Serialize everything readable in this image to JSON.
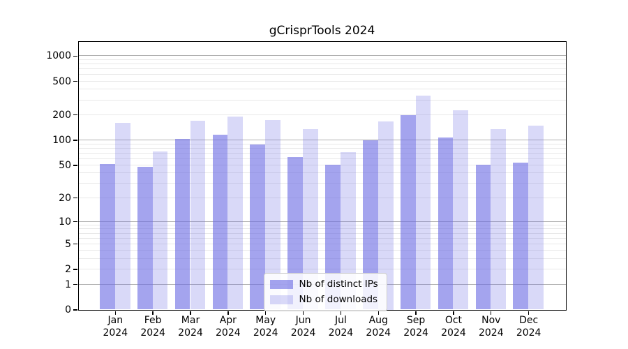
{
  "chart_data": {
    "type": "bar",
    "title": "gCrisprTools 2024",
    "categories": [
      "Jan 2024",
      "Feb 2024",
      "Mar 2024",
      "Apr 2024",
      "May 2024",
      "Jun 2024",
      "Jul 2024",
      "Aug 2024",
      "Sep 2024",
      "Oct 2024",
      "Nov 2024",
      "Dec 2024"
    ],
    "series": [
      {
        "name": "Nb of distinct IPs",
        "values": [
          51,
          48,
          102,
          115,
          88,
          62,
          50,
          100,
          197,
          107,
          50,
          54
        ],
        "color": "rgba(108,108,228,0.62)"
      },
      {
        "name": "Nb of downloads",
        "values": [
          160,
          73,
          170,
          190,
          172,
          135,
          72,
          166,
          335,
          227,
          135,
          147
        ],
        "color": "rgba(108,108,228,0.26)"
      }
    ],
    "yticks": [
      0,
      1,
      2,
      5,
      10,
      20,
      50,
      100,
      200,
      500,
      1000
    ],
    "scale": "log1p",
    "ylim": [
      0,
      1470
    ],
    "xlabel": "",
    "ylabel": "",
    "grid": "horizontal",
    "legend_position": "bottom-center",
    "colors": {
      "grid_major": "#b0b0b0",
      "grid_minor": "#e8e8e8",
      "spine": "#000000",
      "bar_base": "#6c6ce4"
    }
  }
}
